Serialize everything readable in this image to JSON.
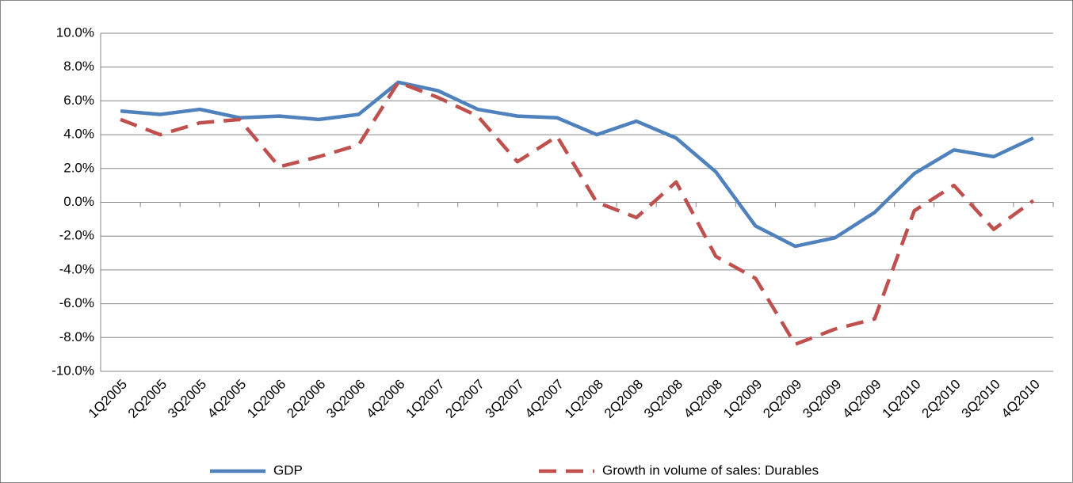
{
  "chart_data": {
    "type": "line",
    "categories": [
      "1Q2005",
      "2Q2005",
      "3Q2005",
      "4Q2005",
      "1Q2006",
      "2Q2006",
      "3Q2006",
      "4Q2006",
      "1Q2007",
      "2Q2007",
      "3Q2007",
      "4Q2007",
      "1Q2008",
      "2Q2008",
      "3Q2008",
      "4Q2008",
      "1Q2009",
      "2Q2009",
      "3Q2009",
      "4Q2009",
      "1Q2010",
      "2Q2010",
      "3Q2010",
      "4Q2010"
    ],
    "series": [
      {
        "name": "GDP",
        "color": "#4f81bd",
        "dash": false,
        "values": [
          5.4,
          5.2,
          5.5,
          5.0,
          5.1,
          4.9,
          5.2,
          7.1,
          6.6,
          5.5,
          5.1,
          5.0,
          4.0,
          4.8,
          3.8,
          1.8,
          -1.4,
          -2.6,
          -2.1,
          -0.6,
          1.7,
          3.1,
          2.7,
          3.8
        ]
      },
      {
        "name": "Growth in volume of sales: Durables",
        "color": "#c0504d",
        "dash": true,
        "values": [
          4.9,
          4.0,
          4.7,
          4.9,
          2.1,
          2.7,
          3.4,
          7.1,
          6.2,
          5.1,
          2.4,
          3.9,
          0.0,
          -0.9,
          1.2,
          -3.2,
          -4.5,
          -8.4,
          -7.5,
          -6.9,
          -0.5,
          1.0,
          -1.6,
          0.1
        ]
      }
    ],
    "ylim": [
      -10,
      10
    ],
    "yticks": [
      {
        "value": -10,
        "label": "-10.0%"
      },
      {
        "value": -8,
        "label": "-8.0%"
      },
      {
        "value": -6,
        "label": "-6.0%"
      },
      {
        "value": -4,
        "label": "-4.0%"
      },
      {
        "value": -2,
        "label": "-2.0%"
      },
      {
        "value": 0,
        "label": "0.0%"
      },
      {
        "value": 2,
        "label": "2.0%"
      },
      {
        "value": 4,
        "label": "4.0%"
      },
      {
        "value": 6,
        "label": "6.0%"
      },
      {
        "value": 8,
        "label": "8.0%"
      },
      {
        "value": 10,
        "label": "10.0%"
      }
    ],
    "grid": true,
    "legend": "bottom"
  }
}
